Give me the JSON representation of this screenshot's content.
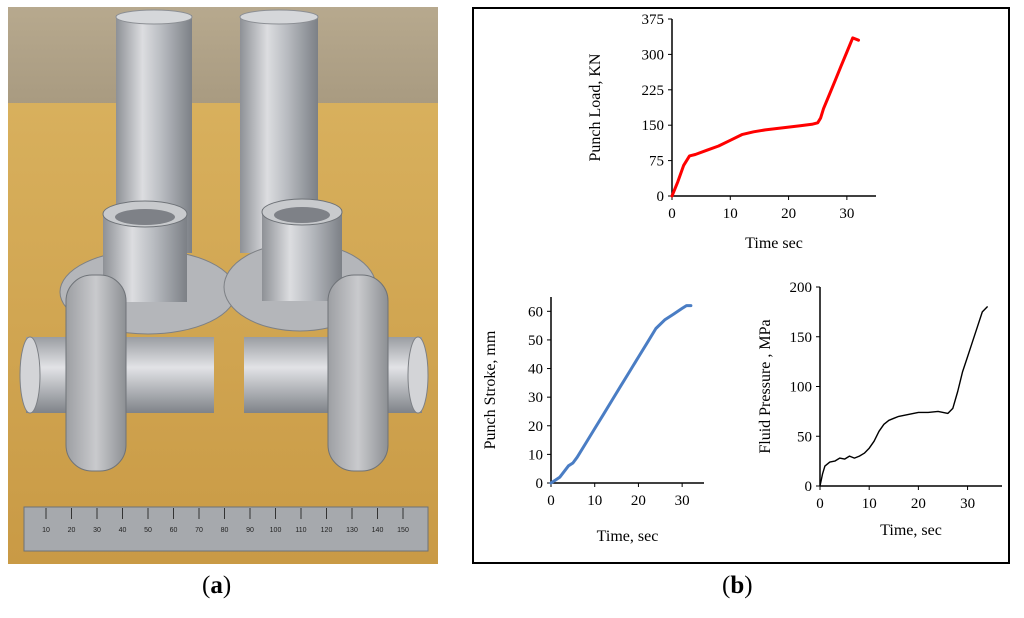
{
  "captions": {
    "a": "a",
    "b": "b"
  },
  "photo": {
    "ruler_ticks": [
      "10",
      "20",
      "30",
      "40",
      "50",
      "60",
      "70",
      "80",
      "90",
      "100",
      "110",
      "120",
      "130",
      "140",
      "150"
    ]
  },
  "chart_data": [
    {
      "type": "line",
      "id": "punch-load",
      "xlabel": "Time sec",
      "ylabel": "Punch Load, KN",
      "xticks": [
        0,
        10,
        20,
        30
      ],
      "yticks": [
        0,
        75,
        150,
        225,
        300,
        375
      ],
      "xlim": [
        0,
        35
      ],
      "ylim": [
        0,
        375
      ],
      "color": "#ff0000",
      "series": [
        {
          "x": [
            0,
            1,
            2,
            3,
            4,
            6,
            8,
            10,
            12,
            14,
            16,
            18,
            20,
            22,
            24,
            25,
            25.5,
            26,
            27,
            28,
            29,
            30,
            31,
            32
          ],
          "y": [
            0,
            30,
            65,
            85,
            88,
            97,
            106,
            118,
            130,
            136,
            140,
            143,
            146,
            149,
            152,
            155,
            165,
            185,
            215,
            245,
            275,
            305,
            335,
            330
          ]
        }
      ]
    },
    {
      "type": "line",
      "id": "punch-stroke",
      "xlabel": "Time, sec",
      "ylabel": "Punch  Stroke, mm",
      "xticks": [
        0,
        10,
        20,
        30
      ],
      "yticks": [
        0,
        10,
        20,
        30,
        40,
        50,
        60
      ],
      "xlim": [
        0,
        35
      ],
      "ylim": [
        0,
        65
      ],
      "color": "#4a7dc4",
      "series": [
        {
          "x": [
            0,
            1,
            2,
            3,
            4,
            5,
            6,
            8,
            10,
            12,
            14,
            16,
            18,
            20,
            22,
            24,
            26,
            28,
            30,
            31,
            32
          ],
          "y": [
            0,
            1,
            2,
            4,
            6,
            7,
            9,
            14,
            19,
            24,
            29,
            34,
            39,
            44,
            49,
            54,
            57,
            59,
            61,
            62,
            62
          ]
        }
      ]
    },
    {
      "type": "line",
      "id": "fluid-pressure",
      "xlabel": "Time,  sec",
      "ylabel": "Fluid  Pressure  , MPa",
      "xticks": [
        0,
        10,
        20,
        30
      ],
      "yticks": [
        0,
        50,
        100,
        150,
        200
      ],
      "xlim": [
        0,
        37
      ],
      "ylim": [
        0,
        200
      ],
      "color": "#000000",
      "series": [
        {
          "x": [
            0,
            0.5,
            1,
            2,
            3,
            4,
            5,
            6,
            7,
            8,
            9,
            10,
            11,
            12,
            13,
            14,
            15,
            16,
            18,
            20,
            22,
            24,
            26,
            27,
            28,
            29,
            30,
            31,
            32,
            33,
            34
          ],
          "y": [
            0,
            12,
            20,
            24,
            25,
            28,
            27,
            30,
            28,
            30,
            33,
            38,
            45,
            55,
            62,
            66,
            68,
            70,
            72,
            74,
            74,
            75,
            73,
            78,
            95,
            115,
            130,
            145,
            160,
            175,
            180
          ]
        }
      ]
    }
  ]
}
